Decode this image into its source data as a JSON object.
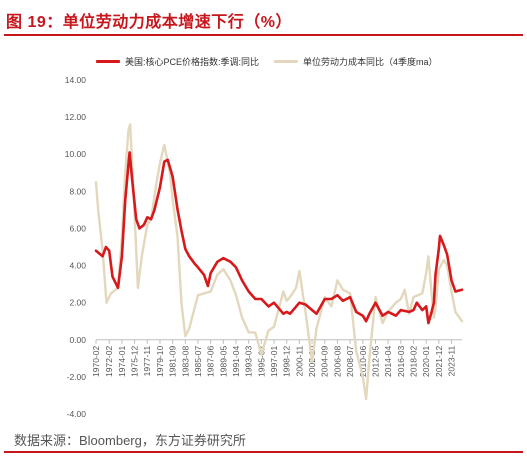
{
  "header": {
    "title": "图 19：单位劳动力成本增速下行（%）"
  },
  "footer": {
    "source": "数据来源：Bloomberg，东方证券研究所"
  },
  "colors": {
    "accent": "#c8161d",
    "series_red": "#d7191c",
    "series_beige": "#e3d8bd"
  },
  "chart_data": {
    "type": "line",
    "title": "",
    "xlabel": "",
    "ylabel": "",
    "ylim": [
      -4,
      14
    ],
    "xlim": [
      "1970-02",
      "2025-06"
    ],
    "y_ticks": [
      "14.00",
      "12.00",
      "10.00",
      "8.00",
      "6.00",
      "4.00",
      "2.00",
      "0.00",
      "-2.00",
      "-4.00"
    ],
    "x_ticks": [
      "1970-02",
      "1972-02",
      "1974-01",
      "1975-12",
      "1977-11",
      "1979-10",
      "1981-09",
      "1983-08",
      "1985-07",
      "1987-06",
      "1989-05",
      "1991-04",
      "1993-03",
      "1995-02",
      "1997-01",
      "1998-12",
      "2000-11",
      "2002-10",
      "2004-09",
      "2006-08",
      "2008-07",
      "2010-06",
      "2012-05",
      "2014-04",
      "2016-03",
      "2018-02",
      "2020-01",
      "2021-12",
      "2023-11"
    ],
    "legend_position": "top",
    "grid": false,
    "series": [
      {
        "name": "美国:核心PCE价格指数:季调:同比",
        "color": "#d7191c",
        "points": [
          [
            "1970-02",
            4.8
          ],
          [
            "1971-02",
            4.5
          ],
          [
            "1971-08",
            5.0
          ],
          [
            "1972-02",
            4.8
          ],
          [
            "1972-08",
            3.4
          ],
          [
            "1973-06",
            2.8
          ],
          [
            "1974-01",
            4.5
          ],
          [
            "1974-07",
            7.5
          ],
          [
            "1975-01",
            9.5
          ],
          [
            "1975-03",
            10.1
          ],
          [
            "1975-08",
            8.5
          ],
          [
            "1976-03",
            6.5
          ],
          [
            "1976-09",
            6.0
          ],
          [
            "1977-05",
            6.2
          ],
          [
            "1977-11",
            6.6
          ],
          [
            "1978-06",
            6.5
          ],
          [
            "1978-12",
            7.0
          ],
          [
            "1979-10",
            8.2
          ],
          [
            "1980-06",
            9.6
          ],
          [
            "1980-12",
            9.7
          ],
          [
            "1981-09",
            8.8
          ],
          [
            "1982-06",
            7.0
          ],
          [
            "1983-01",
            5.9
          ],
          [
            "1983-08",
            4.9
          ],
          [
            "1984-03",
            4.5
          ],
          [
            "1985-01",
            4.1
          ],
          [
            "1985-07",
            3.9
          ],
          [
            "1986-06",
            3.5
          ],
          [
            "1987-01",
            2.9
          ],
          [
            "1987-06",
            3.6
          ],
          [
            "1988-06",
            4.2
          ],
          [
            "1989-05",
            4.4
          ],
          [
            "1990-06",
            4.2
          ],
          [
            "1991-04",
            3.9
          ],
          [
            "1992-03",
            3.2
          ],
          [
            "1993-03",
            2.6
          ],
          [
            "1994-03",
            2.2
          ],
          [
            "1995-02",
            2.2
          ],
          [
            "1996-03",
            1.8
          ],
          [
            "1997-01",
            2.0
          ],
          [
            "1998-06",
            1.4
          ],
          [
            "1998-12",
            1.5
          ],
          [
            "1999-06",
            1.4
          ],
          [
            "2000-11",
            2.0
          ],
          [
            "2001-10",
            1.9
          ],
          [
            "2002-10",
            1.6
          ],
          [
            "2003-06",
            1.4
          ],
          [
            "2004-09",
            2.2
          ],
          [
            "2005-09",
            2.2
          ],
          [
            "2006-08",
            2.4
          ],
          [
            "2007-06",
            2.1
          ],
          [
            "2008-07",
            2.3
          ],
          [
            "2009-06",
            1.5
          ],
          [
            "2010-06",
            1.3
          ],
          [
            "2010-12",
            1.0
          ],
          [
            "2011-06",
            1.4
          ],
          [
            "2012-05",
            2.0
          ],
          [
            "2013-06",
            1.3
          ],
          [
            "2014-04",
            1.5
          ],
          [
            "2015-06",
            1.3
          ],
          [
            "2016-03",
            1.6
          ],
          [
            "2017-06",
            1.5
          ],
          [
            "2018-02",
            1.6
          ],
          [
            "2018-08",
            2.0
          ],
          [
            "2019-06",
            1.6
          ],
          [
            "2020-01",
            1.8
          ],
          [
            "2020-05",
            0.9
          ],
          [
            "2020-10",
            1.4
          ],
          [
            "2021-03",
            2.0
          ],
          [
            "2021-06",
            3.5
          ],
          [
            "2021-12",
            4.9
          ],
          [
            "2022-02",
            5.6
          ],
          [
            "2022-09",
            5.1
          ],
          [
            "2023-03",
            4.6
          ],
          [
            "2023-11",
            3.2
          ],
          [
            "2024-06",
            2.6
          ],
          [
            "2025-06",
            2.7
          ]
        ]
      },
      {
        "name": "单位劳动力成本同比（4季度ma）",
        "color": "#e3d8bd",
        "points": [
          [
            "1970-02",
            8.5
          ],
          [
            "1970-06",
            7.0
          ],
          [
            "1971-02",
            4.8
          ],
          [
            "1971-09",
            2.0
          ],
          [
            "1972-05",
            2.5
          ],
          [
            "1973-06",
            2.8
          ],
          [
            "1974-01",
            5.5
          ],
          [
            "1974-07",
            9.0
          ],
          [
            "1975-01",
            11.3
          ],
          [
            "1975-04",
            11.6
          ],
          [
            "1975-10",
            8.0
          ],
          [
            "1976-06",
            2.8
          ],
          [
            "1977-01",
            4.5
          ],
          [
            "1977-11",
            6.2
          ],
          [
            "1978-06",
            6.5
          ],
          [
            "1979-04",
            8.5
          ],
          [
            "1979-10",
            9.5
          ],
          [
            "1980-06",
            10.5
          ],
          [
            "1981-04",
            9.0
          ],
          [
            "1981-09",
            7.6
          ],
          [
            "1982-06",
            5.5
          ],
          [
            "1983-01",
            2.0
          ],
          [
            "1983-08",
            0.2
          ],
          [
            "1984-03",
            0.6
          ],
          [
            "1985-07",
            2.4
          ],
          [
            "1986-06",
            2.5
          ],
          [
            "1987-06",
            2.6
          ],
          [
            "1988-06",
            3.5
          ],
          [
            "1989-05",
            3.8
          ],
          [
            "1990-06",
            3.2
          ],
          [
            "1991-04",
            2.4
          ],
          [
            "1992-03",
            1.2
          ],
          [
            "1993-03",
            0.4
          ],
          [
            "1994-03",
            0.4
          ],
          [
            "1995-02",
            -0.8
          ],
          [
            "1996-03",
            0.5
          ],
          [
            "1997-01",
            0.7
          ],
          [
            "1998-06",
            2.6
          ],
          [
            "1998-12",
            2.1
          ],
          [
            "1999-06",
            2.3
          ],
          [
            "2000-05",
            2.8
          ],
          [
            "2000-11",
            3.7
          ],
          [
            "2001-10",
            1.5
          ],
          [
            "2002-10",
            -1.2
          ],
          [
            "2003-06",
            0.6
          ],
          [
            "2004-09",
            2.3
          ],
          [
            "2005-09",
            1.8
          ],
          [
            "2006-08",
            3.2
          ],
          [
            "2007-06",
            2.7
          ],
          [
            "2008-07",
            2.5
          ],
          [
            "2009-06",
            -0.6
          ],
          [
            "2010-06",
            -2.0
          ],
          [
            "2010-12",
            -3.2
          ],
          [
            "2011-06",
            -1.0
          ],
          [
            "2012-05",
            2.3
          ],
          [
            "2013-06",
            0.9
          ],
          [
            "2014-04",
            1.5
          ],
          [
            "2015-06",
            2.0
          ],
          [
            "2016-03",
            2.2
          ],
          [
            "2016-10",
            2.7
          ],
          [
            "2017-06",
            1.4
          ],
          [
            "2018-02",
            2.3
          ],
          [
            "2019-06",
            2.5
          ],
          [
            "2020-01",
            3.6
          ],
          [
            "2020-05",
            4.5
          ],
          [
            "2020-10",
            2.8
          ],
          [
            "2021-03",
            1.2
          ],
          [
            "2021-06",
            1.7
          ],
          [
            "2021-12",
            3.8
          ],
          [
            "2022-09",
            4.3
          ],
          [
            "2023-03",
            4.0
          ],
          [
            "2023-11",
            2.6
          ],
          [
            "2024-06",
            1.5
          ],
          [
            "2025-06",
            1.0
          ]
        ]
      }
    ]
  }
}
